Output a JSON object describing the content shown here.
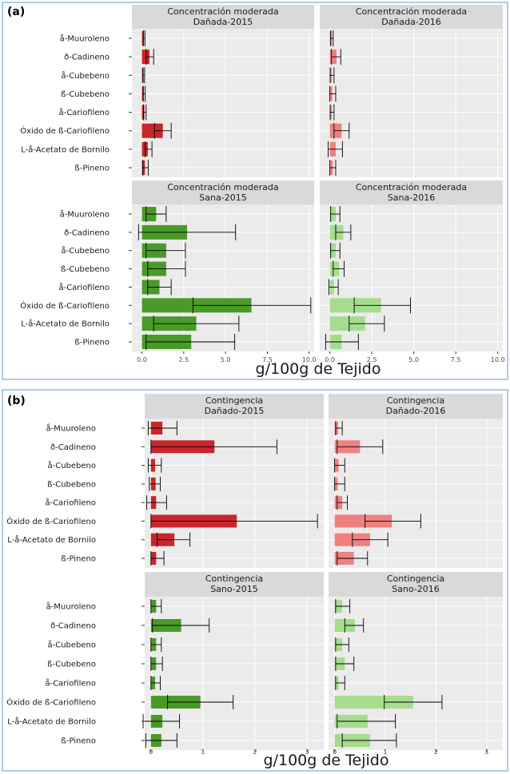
{
  "colors": {
    "panel_bg": "#ebebeb",
    "strip_bg": "#d9d9d9",
    "grid": "#ffffff",
    "outer_border": "#5b9bd5",
    "danada_2015": "#c9252c",
    "danada_2016": "#f08080",
    "sana_2015": "#4a9a2a",
    "sana_2016": "#a6dc8e",
    "error_bar": "#000000"
  },
  "chart_data": [
    {
      "id": "a",
      "panel_letter": "(a)",
      "type": "bar",
      "orientation": "horizontal",
      "categories": [
        "å-Muuroleno",
        "ð-Cadineno",
        "å-Cubebeno",
        "ß-Cubebeno",
        "å-Cariofileno",
        "Óxido de ß-Cariofileno",
        "L-å-Acetato de Bornilo",
        "ß-Pineno"
      ],
      "xlabel": "g/100g de Tejido",
      "xlim": [
        -0.6,
        10.3
      ],
      "xticks": [
        0.0,
        2.5,
        5.0,
        7.5,
        10.0
      ],
      "xtick_labels": [
        "0.0",
        "2.5",
        "5.0",
        "7.5",
        "10.0"
      ],
      "facets": [
        {
          "strip": [
            "Concentración moderada",
            "Dañada-2015"
          ],
          "color_key": "danada_2015",
          "values": [
            0.12,
            0.45,
            0.1,
            0.12,
            0.15,
            1.25,
            0.35,
            0.18
          ],
          "lows": [
            0.08,
            0.25,
            0.06,
            0.07,
            0.09,
            0.75,
            0.2,
            0.05
          ],
          "highs": [
            0.18,
            0.7,
            0.16,
            0.2,
            0.25,
            1.75,
            0.6,
            0.38
          ]
        },
        {
          "strip": [
            "Concentración moderada",
            "Dañada-2016"
          ],
          "color_key": "danada_2016",
          "values": [
            0.12,
            0.4,
            0.12,
            0.15,
            0.12,
            0.7,
            0.35,
            0.18
          ],
          "lows": [
            0.05,
            0.1,
            0.02,
            0.0,
            0.02,
            0.25,
            -0.1,
            0.0
          ],
          "highs": [
            0.2,
            0.65,
            0.25,
            0.35,
            0.25,
            1.15,
            0.75,
            0.35
          ]
        },
        {
          "strip": [
            "Concentración moderada",
            "Sana-2015"
          ],
          "color_key": "sana_2015",
          "values": [
            0.85,
            2.7,
            1.45,
            1.45,
            1.05,
            6.55,
            3.25,
            2.95
          ],
          "lows": [
            0.25,
            -0.2,
            0.25,
            0.35,
            0.35,
            3.05,
            0.7,
            0.25
          ],
          "highs": [
            1.45,
            5.6,
            2.6,
            2.6,
            1.75,
            10.1,
            5.8,
            5.55
          ]
        },
        {
          "strip": [
            "Concentración moderada",
            "Sana-2016"
          ],
          "color_key": "sana_2016",
          "values": [
            0.35,
            0.8,
            0.35,
            0.55,
            0.25,
            3.05,
            2.1,
            0.7
          ],
          "lows": [
            0.05,
            0.35,
            0.05,
            0.2,
            -0.05,
            1.45,
            1.15,
            -0.25
          ],
          "highs": [
            0.6,
            1.25,
            0.6,
            0.85,
            0.5,
            4.8,
            3.25,
            1.7
          ]
        }
      ]
    },
    {
      "id": "b",
      "panel_letter": "(b)",
      "type": "bar",
      "orientation": "horizontal",
      "categories": [
        "å-Muuroleno",
        "ð-Cadineno",
        "å-Cubebeno",
        "ß-Cubebeno",
        "å-Cariofileno",
        "Óxido de ß-Cariofileno",
        "L-å-Acetato de Bornilo",
        "ß-Pineno"
      ],
      "xlabel": "g/100g de Tejido",
      "xlim": [
        -0.12,
        3.32
      ],
      "xticks": [
        0,
        1,
        2,
        3
      ],
      "xtick_labels": [
        "0",
        "1",
        "2",
        "3"
      ],
      "facets": [
        {
          "strip": [
            "Contingencia",
            "Dañado-2015"
          ],
          "color_key": "danada_2015",
          "values": [
            0.22,
            1.22,
            0.08,
            0.09,
            0.1,
            1.65,
            0.45,
            0.1
          ],
          "lows": [
            -0.05,
            0.0,
            -0.05,
            -0.03,
            -0.08,
            0.0,
            0.12,
            0.0
          ],
          "highs": [
            0.5,
            2.42,
            0.2,
            0.18,
            0.3,
            3.2,
            0.75,
            0.25
          ]
        },
        {
          "strip": [
            "Contingencia",
            "Dañado-2016"
          ],
          "color_key": "danada_2016",
          "values": [
            0.07,
            0.5,
            0.08,
            0.06,
            0.15,
            1.13,
            0.7,
            0.38
          ],
          "lows": [
            0.02,
            0.05,
            0.0,
            0.0,
            0.05,
            0.6,
            0.35,
            0.05
          ],
          "highs": [
            0.15,
            0.95,
            0.2,
            0.2,
            0.25,
            1.7,
            1.05,
            0.65
          ]
        },
        {
          "strip": [
            "Contingencia",
            "Sano-2015"
          ],
          "color_key": "sana_2015",
          "values": [
            0.1,
            0.58,
            0.1,
            0.1,
            0.08,
            0.95,
            0.22,
            0.2
          ],
          "lows": [
            0.0,
            0.03,
            0.0,
            0.0,
            0.0,
            0.32,
            -0.15,
            -0.1
          ],
          "highs": [
            0.2,
            1.12,
            0.2,
            0.22,
            0.18,
            1.58,
            0.55,
            0.5
          ]
        },
        {
          "strip": [
            "Contingencia",
            "Sano-2016"
          ],
          "color_key": "sana_2016",
          "values": [
            0.15,
            0.4,
            0.15,
            0.2,
            0.08,
            1.55,
            0.65,
            0.7
          ],
          "lows": [
            0.02,
            0.2,
            0.02,
            0.02,
            0.02,
            0.98,
            0.05,
            0.15
          ],
          "highs": [
            0.3,
            0.57,
            0.28,
            0.38,
            0.2,
            2.12,
            1.2,
            1.22
          ]
        }
      ]
    }
  ]
}
